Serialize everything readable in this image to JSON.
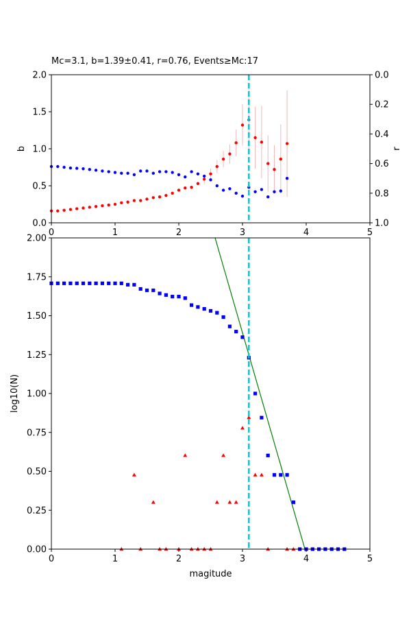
{
  "chart_data": [
    {
      "type": "scatter",
      "title": "Mc=3.1, b=1.39±0.41, r=0.76, Events≥Mc:17",
      "xlabel": "",
      "ylabel": "b",
      "ylabel_right": "r",
      "xlim": [
        0,
        5
      ],
      "ylim": [
        0,
        2.0
      ],
      "ylim_right": [
        1.0,
        0.0
      ],
      "xticks": [
        "0",
        "1",
        "2",
        "3",
        "4",
        "5"
      ],
      "yticks": [
        "0.0",
        "0.5",
        "1.0",
        "1.5",
        "2.0"
      ],
      "yticks_right": [
        "0.0",
        "0.2",
        "0.4",
        "0.6",
        "0.8",
        "1.0"
      ],
      "mc_line": 3.1,
      "series": [
        {
          "color": "#ff0000",
          "axis": "left",
          "x": [
            0.0,
            0.1,
            0.2,
            0.3,
            0.4,
            0.5,
            0.6,
            0.7,
            0.8,
            0.9,
            1.0,
            1.1,
            1.2,
            1.3,
            1.4,
            1.5,
            1.6,
            1.7,
            1.8,
            1.9,
            2.0,
            2.1,
            2.2,
            2.3,
            2.4,
            2.5,
            2.6,
            2.7,
            2.8,
            2.9,
            3.0,
            3.1,
            3.2,
            3.3,
            3.4,
            3.5,
            3.6,
            3.7
          ],
          "y": [
            0.16,
            0.16,
            0.17,
            0.18,
            0.19,
            0.2,
            0.21,
            0.22,
            0.23,
            0.24,
            0.25,
            0.27,
            0.28,
            0.3,
            0.3,
            0.32,
            0.34,
            0.35,
            0.37,
            0.4,
            0.44,
            0.47,
            0.48,
            0.53,
            0.59,
            0.66,
            0.76,
            0.86,
            0.93,
            1.08,
            1.32,
            1.39,
            1.15,
            1.09,
            0.8,
            0.72,
            0.86,
            1.07
          ],
          "err": [
            0,
            0,
            0,
            0,
            0,
            0,
            0,
            0,
            0,
            0,
            0,
            0,
            0,
            0,
            0,
            0,
            0,
            0,
            0,
            0,
            0,
            0,
            0,
            0,
            0.06,
            0.07,
            0.09,
            0.11,
            0.13,
            0.18,
            0.28,
            0.41,
            0.42,
            0.49,
            0.38,
            0.33,
            0.47,
            0.72
          ]
        },
        {
          "color": "#0000ff",
          "axis": "right",
          "x": [
            0.0,
            0.1,
            0.2,
            0.3,
            0.4,
            0.5,
            0.6,
            0.7,
            0.8,
            0.9,
            1.0,
            1.1,
            1.2,
            1.3,
            1.4,
            1.5,
            1.6,
            1.7,
            1.8,
            1.9,
            2.0,
            2.1,
            2.2,
            2.3,
            2.4,
            2.5,
            2.6,
            2.7,
            2.8,
            2.9,
            3.0,
            3.1,
            3.2,
            3.3,
            3.4,
            3.5,
            3.6,
            3.7
          ],
          "y": [
            0.62,
            0.62,
            0.625,
            0.63,
            0.632,
            0.635,
            0.64,
            0.645,
            0.65,
            0.655,
            0.66,
            0.665,
            0.665,
            0.675,
            0.65,
            0.65,
            0.665,
            0.655,
            0.655,
            0.66,
            0.675,
            0.69,
            0.655,
            0.67,
            0.685,
            0.71,
            0.75,
            0.78,
            0.77,
            0.8,
            0.82,
            0.76,
            0.79,
            0.775,
            0.825,
            0.79,
            0.785,
            0.7
          ]
        }
      ]
    },
    {
      "type": "scatter",
      "title": "",
      "xlabel": "magitude",
      "ylabel": "log10(N)",
      "xlim": [
        0,
        5
      ],
      "ylim": [
        0,
        2.0
      ],
      "xticks": [
        "0",
        "1",
        "2",
        "3",
        "4",
        "5"
      ],
      "yticks": [
        "0.00",
        "0.25",
        "0.50",
        "0.75",
        "1.00",
        "1.25",
        "1.50",
        "1.75",
        "2.00"
      ],
      "mc_line": 3.1,
      "fit_line": {
        "x": [
          2.57,
          3.98
        ],
        "y": [
          2.0,
          0.0
        ],
        "color": "#008000"
      },
      "series": [
        {
          "color": "#0000ff",
          "marker": "square",
          "x": [
            0.0,
            0.1,
            0.2,
            0.3,
            0.4,
            0.5,
            0.6,
            0.7,
            0.8,
            0.9,
            1.0,
            1.1,
            1.2,
            1.3,
            1.4,
            1.5,
            1.6,
            1.7,
            1.8,
            1.9,
            2.0,
            2.1,
            2.2,
            2.3,
            2.4,
            2.5,
            2.6,
            2.7,
            2.8,
            2.9,
            3.0,
            3.1,
            3.2,
            3.3,
            3.4,
            3.5,
            3.6,
            3.7,
            3.8,
            3.9,
            4.0,
            4.1,
            4.2,
            4.3,
            4.4,
            4.5,
            4.6
          ],
          "y": [
            1.708,
            1.708,
            1.708,
            1.708,
            1.708,
            1.708,
            1.708,
            1.708,
            1.708,
            1.708,
            1.708,
            1.708,
            1.699,
            1.699,
            1.672,
            1.663,
            1.663,
            1.643,
            1.633,
            1.623,
            1.623,
            1.613,
            1.568,
            1.556,
            1.544,
            1.531,
            1.519,
            1.491,
            1.431,
            1.398,
            1.362,
            1.23,
            1.0,
            0.845,
            0.602,
            0.477,
            0.477,
            0.477,
            0.301,
            0.0,
            0.0,
            0.0,
            0.0,
            0.0,
            0.0,
            0.0,
            0.0
          ]
        },
        {
          "color": "#ff0000",
          "marker": "triangle",
          "x": [
            1.1,
            1.3,
            1.4,
            1.6,
            1.7,
            1.8,
            2.0,
            2.1,
            2.2,
            2.3,
            2.4,
            2.5,
            2.6,
            2.7,
            2.8,
            2.9,
            3.0,
            3.1,
            3.2,
            3.3,
            3.4,
            3.7,
            3.8
          ],
          "y": [
            0.0,
            0.477,
            0.0,
            0.301,
            0.0,
            0.0,
            0.0,
            0.602,
            0.0,
            0.0,
            0.0,
            0.0,
            0.301,
            0.602,
            0.301,
            0.301,
            0.778,
            0.845,
            0.477,
            0.477,
            0.0,
            0.0,
            0.0
          ]
        }
      ]
    }
  ]
}
